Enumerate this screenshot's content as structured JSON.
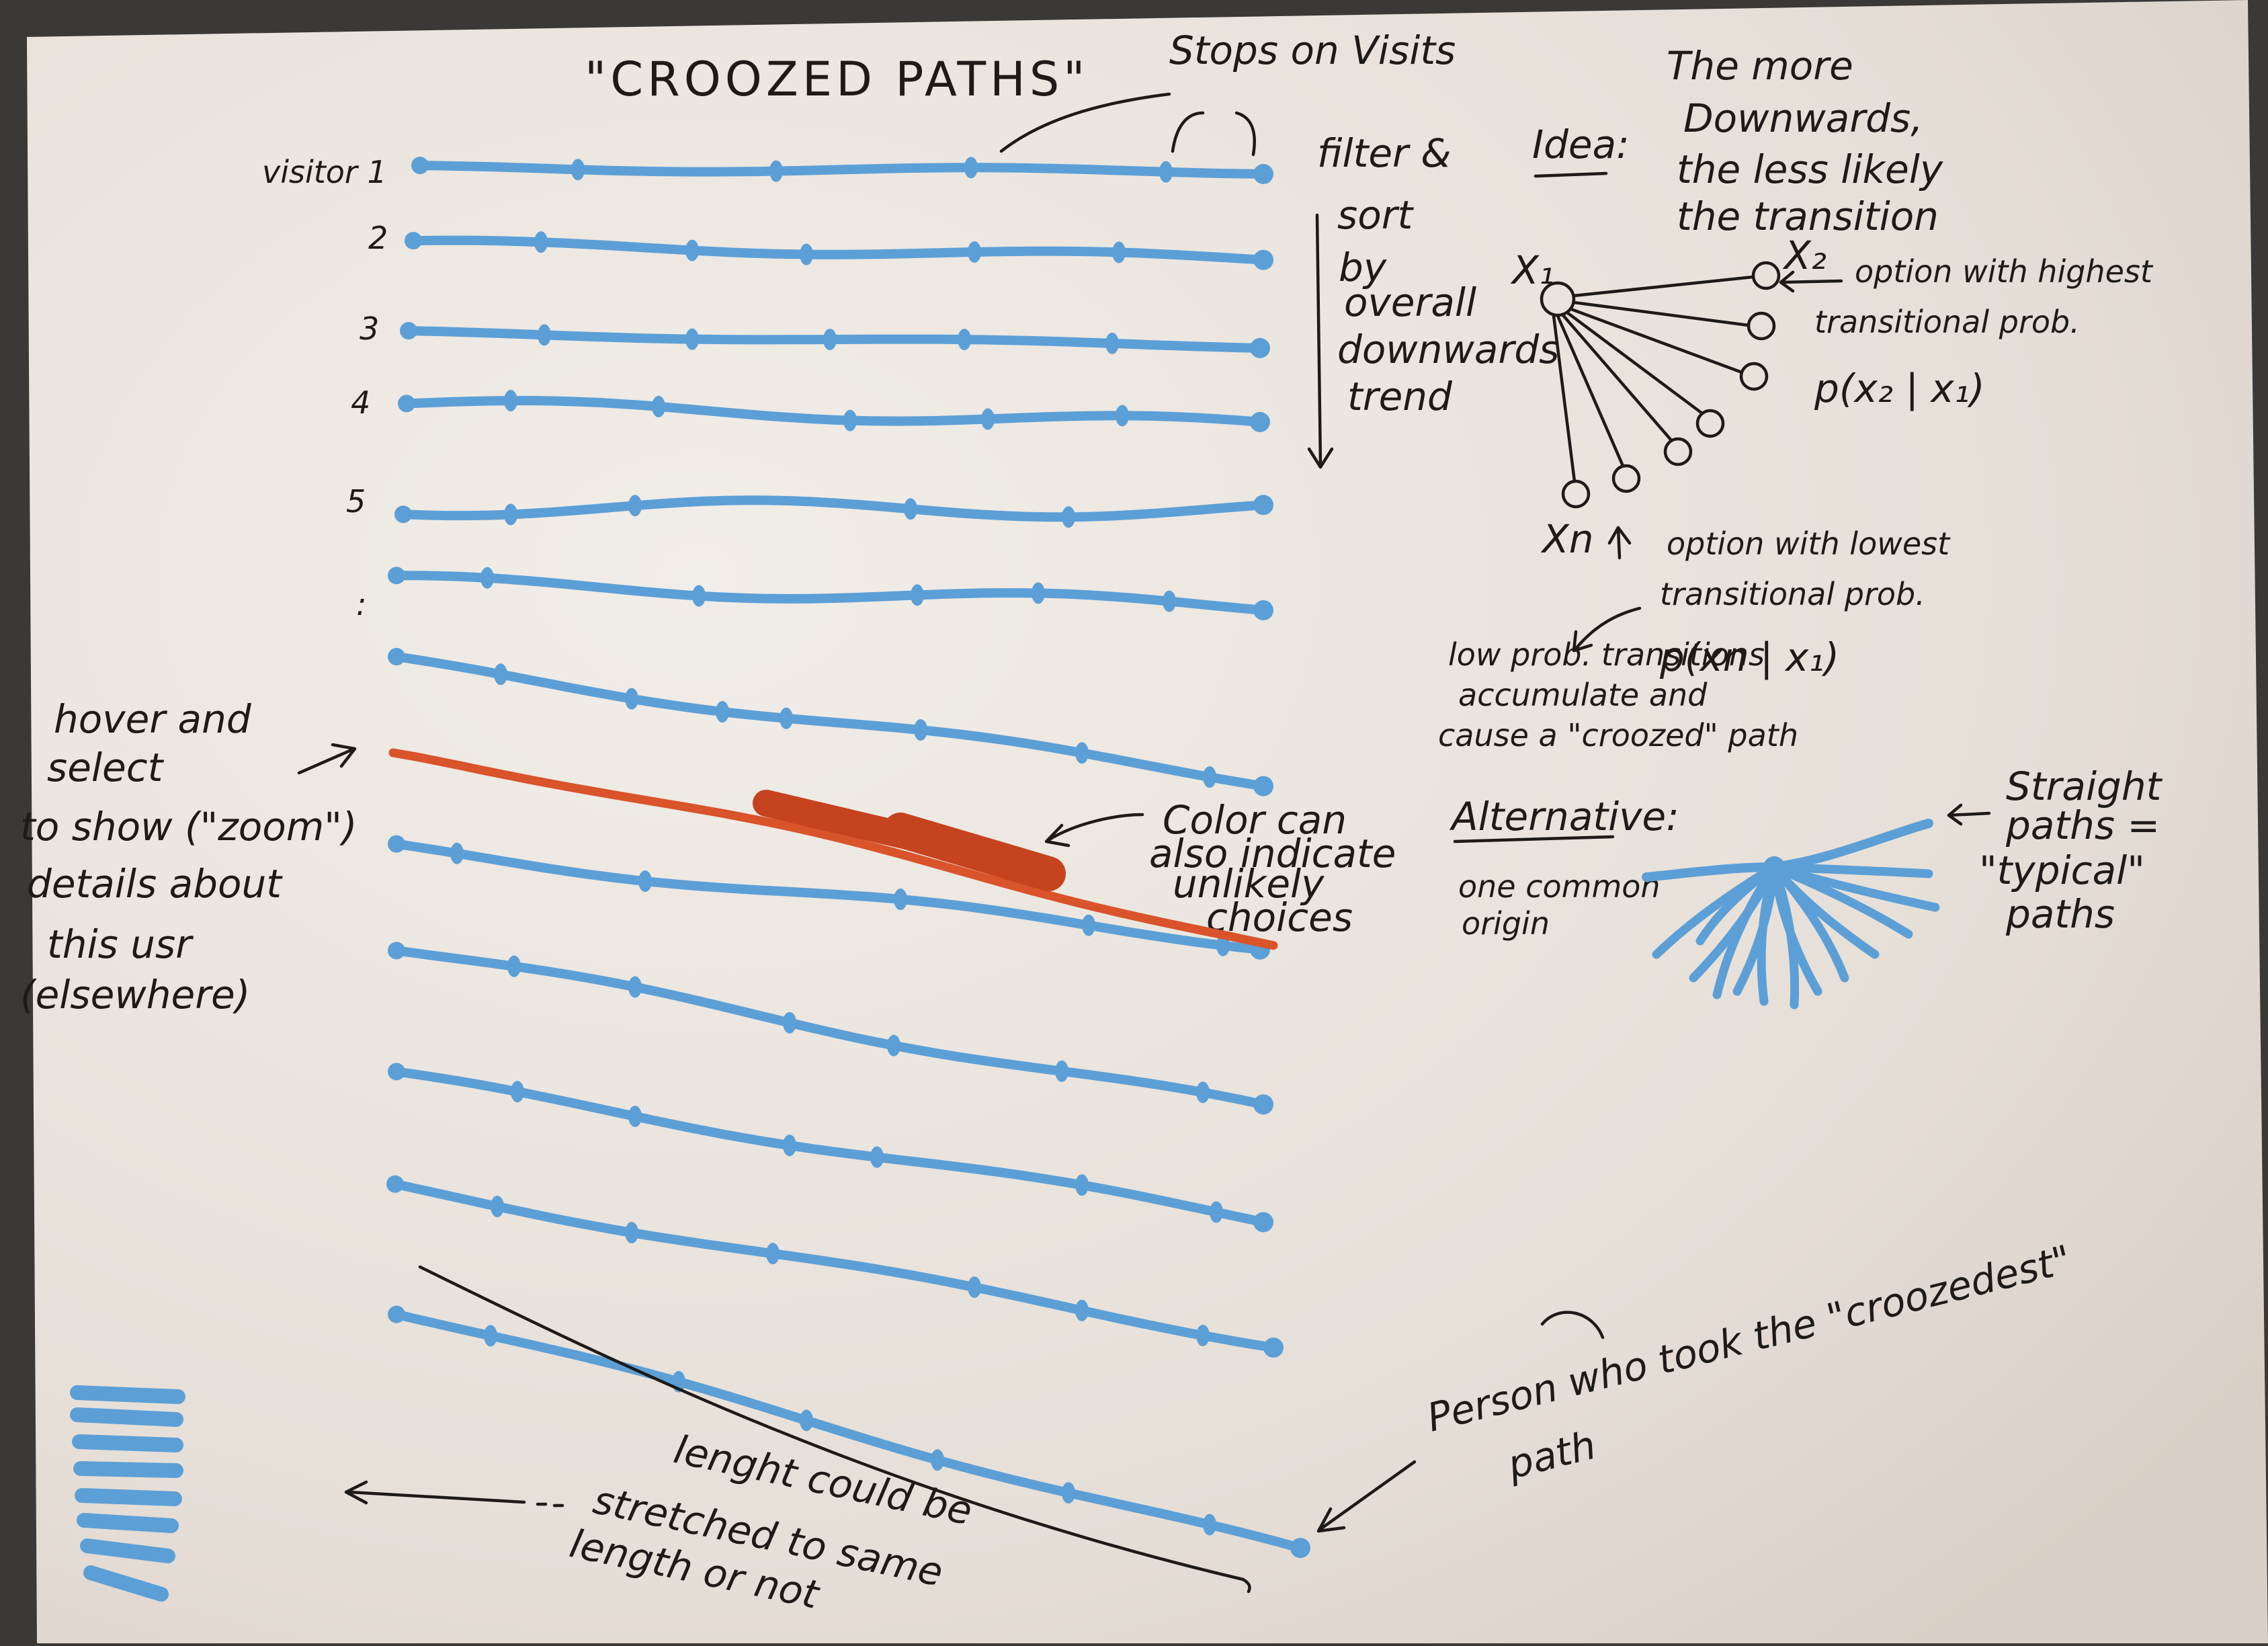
{
  "title": "\"CROOZED PATHS\"",
  "stops_note": "Stops on Visits",
  "row_labels": [
    "visitor 1",
    "2",
    "3",
    "4",
    "5",
    ":"
  ],
  "filter_note": [
    "filter &",
    "sort",
    "by",
    "overall",
    "downwards",
    "trend"
  ],
  "idea_label": "Idea:",
  "idea_text": [
    "The more",
    "Downwards,",
    "the less likely",
    "the transition"
  ],
  "node_labels": {
    "x1": "X₁",
    "x2": "X₂",
    "xn": "Xn"
  },
  "highest_note": [
    "option with highest",
    "transitional prob."
  ],
  "p_high": "p(x₂ | x₁)",
  "lowest_note": [
    "option with lowest",
    "transitional prob."
  ],
  "p_low": "p(xn | x₁)",
  "low_prob_note": [
    "low prob. transitions",
    "accumulate and",
    "cause a \"croozed\" path"
  ],
  "alternative_label": "Alternative:",
  "common_origin": [
    "one common",
    "origin"
  ],
  "straight_note": [
    "Straight",
    "paths =",
    "\"typical\"",
    "paths"
  ],
  "hover_note": [
    "hover and",
    "select",
    "to show (\"zoom\")",
    "details about",
    "this usr",
    "(elsewhere)"
  ],
  "color_note": [
    "Color can",
    "also indicate",
    "unlikely",
    "choices"
  ],
  "length_note": [
    "lenght could be",
    "stretched to same",
    "length or not"
  ],
  "person_note": [
    "Person who took the \"croozedest\"",
    "path"
  ],
  "colors": {
    "paper": "#ece7e1",
    "ink": "#1d1a17",
    "path_blue": "#5c9fd6",
    "highlight": "#d9532b",
    "highlight_dark": "#c5431f"
  }
}
